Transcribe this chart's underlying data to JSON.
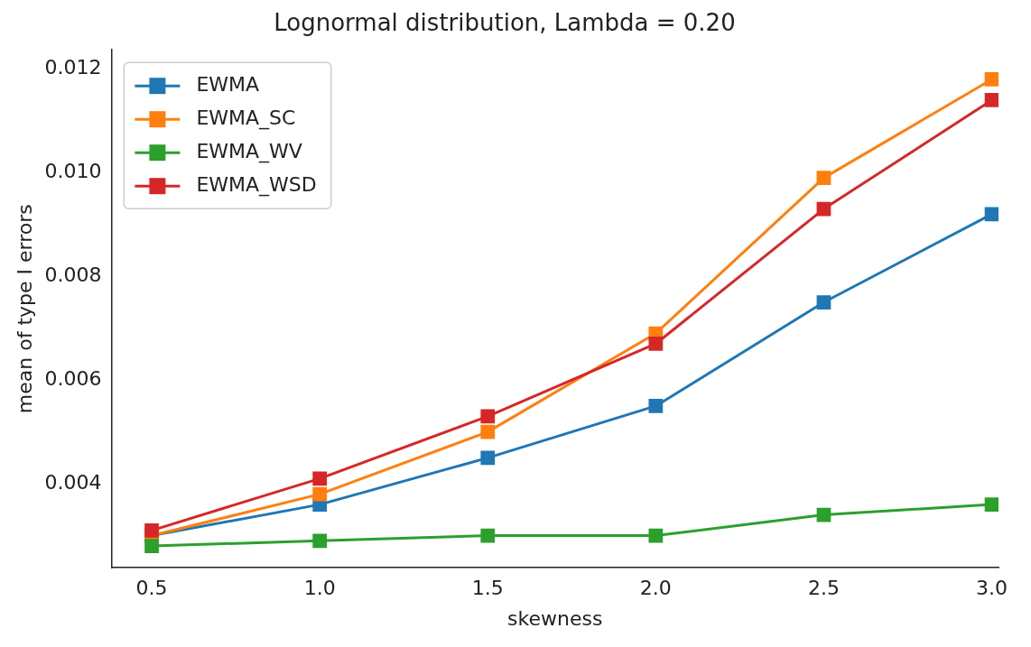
{
  "chart_data": {
    "type": "line",
    "title": "Lognormal distribution, Lambda = 0.20",
    "xlabel": "skewness",
    "ylabel": "mean of type I errors",
    "x": [
      0.5,
      1.0,
      1.5,
      2.0,
      2.5,
      3.0
    ],
    "series": [
      {
        "name": "EWMA",
        "color": "#1f77b4",
        "values": [
          0.003,
          0.0036,
          0.0045,
          0.0055,
          0.0075,
          0.0092
        ]
      },
      {
        "name": "EWMA_SC",
        "color": "#ff7f0e",
        "values": [
          0.003,
          0.0038,
          0.005,
          0.0069,
          0.0099,
          0.0118
        ]
      },
      {
        "name": "EWMA_WV",
        "color": "#2ca02c",
        "values": [
          0.0028,
          0.0029,
          0.003,
          0.003,
          0.0034,
          0.0036
        ]
      },
      {
        "name": "EWMA_WSD",
        "color": "#d62728",
        "values": [
          0.0031,
          0.0041,
          0.0053,
          0.0067,
          0.0093,
          0.0114
        ]
      }
    ],
    "xlim": [
      0.38,
      3.02
    ],
    "ylim": [
      0.00238,
      0.01237
    ],
    "xticks": [
      0.5,
      {
        "value": 1,
        "label": "1.0"
      },
      1.5,
      {
        "value": 2,
        "label": "2.0"
      },
      2.5,
      {
        "value": 3,
        "label": "3.0"
      }
    ],
    "yticks": [
      0.004,
      0.006,
      0.008,
      {
        "value": 0.01,
        "label": "0.010"
      },
      0.012
    ],
    "grid": false,
    "legend": "top left",
    "marker": "square",
    "line_style": "solid"
  }
}
